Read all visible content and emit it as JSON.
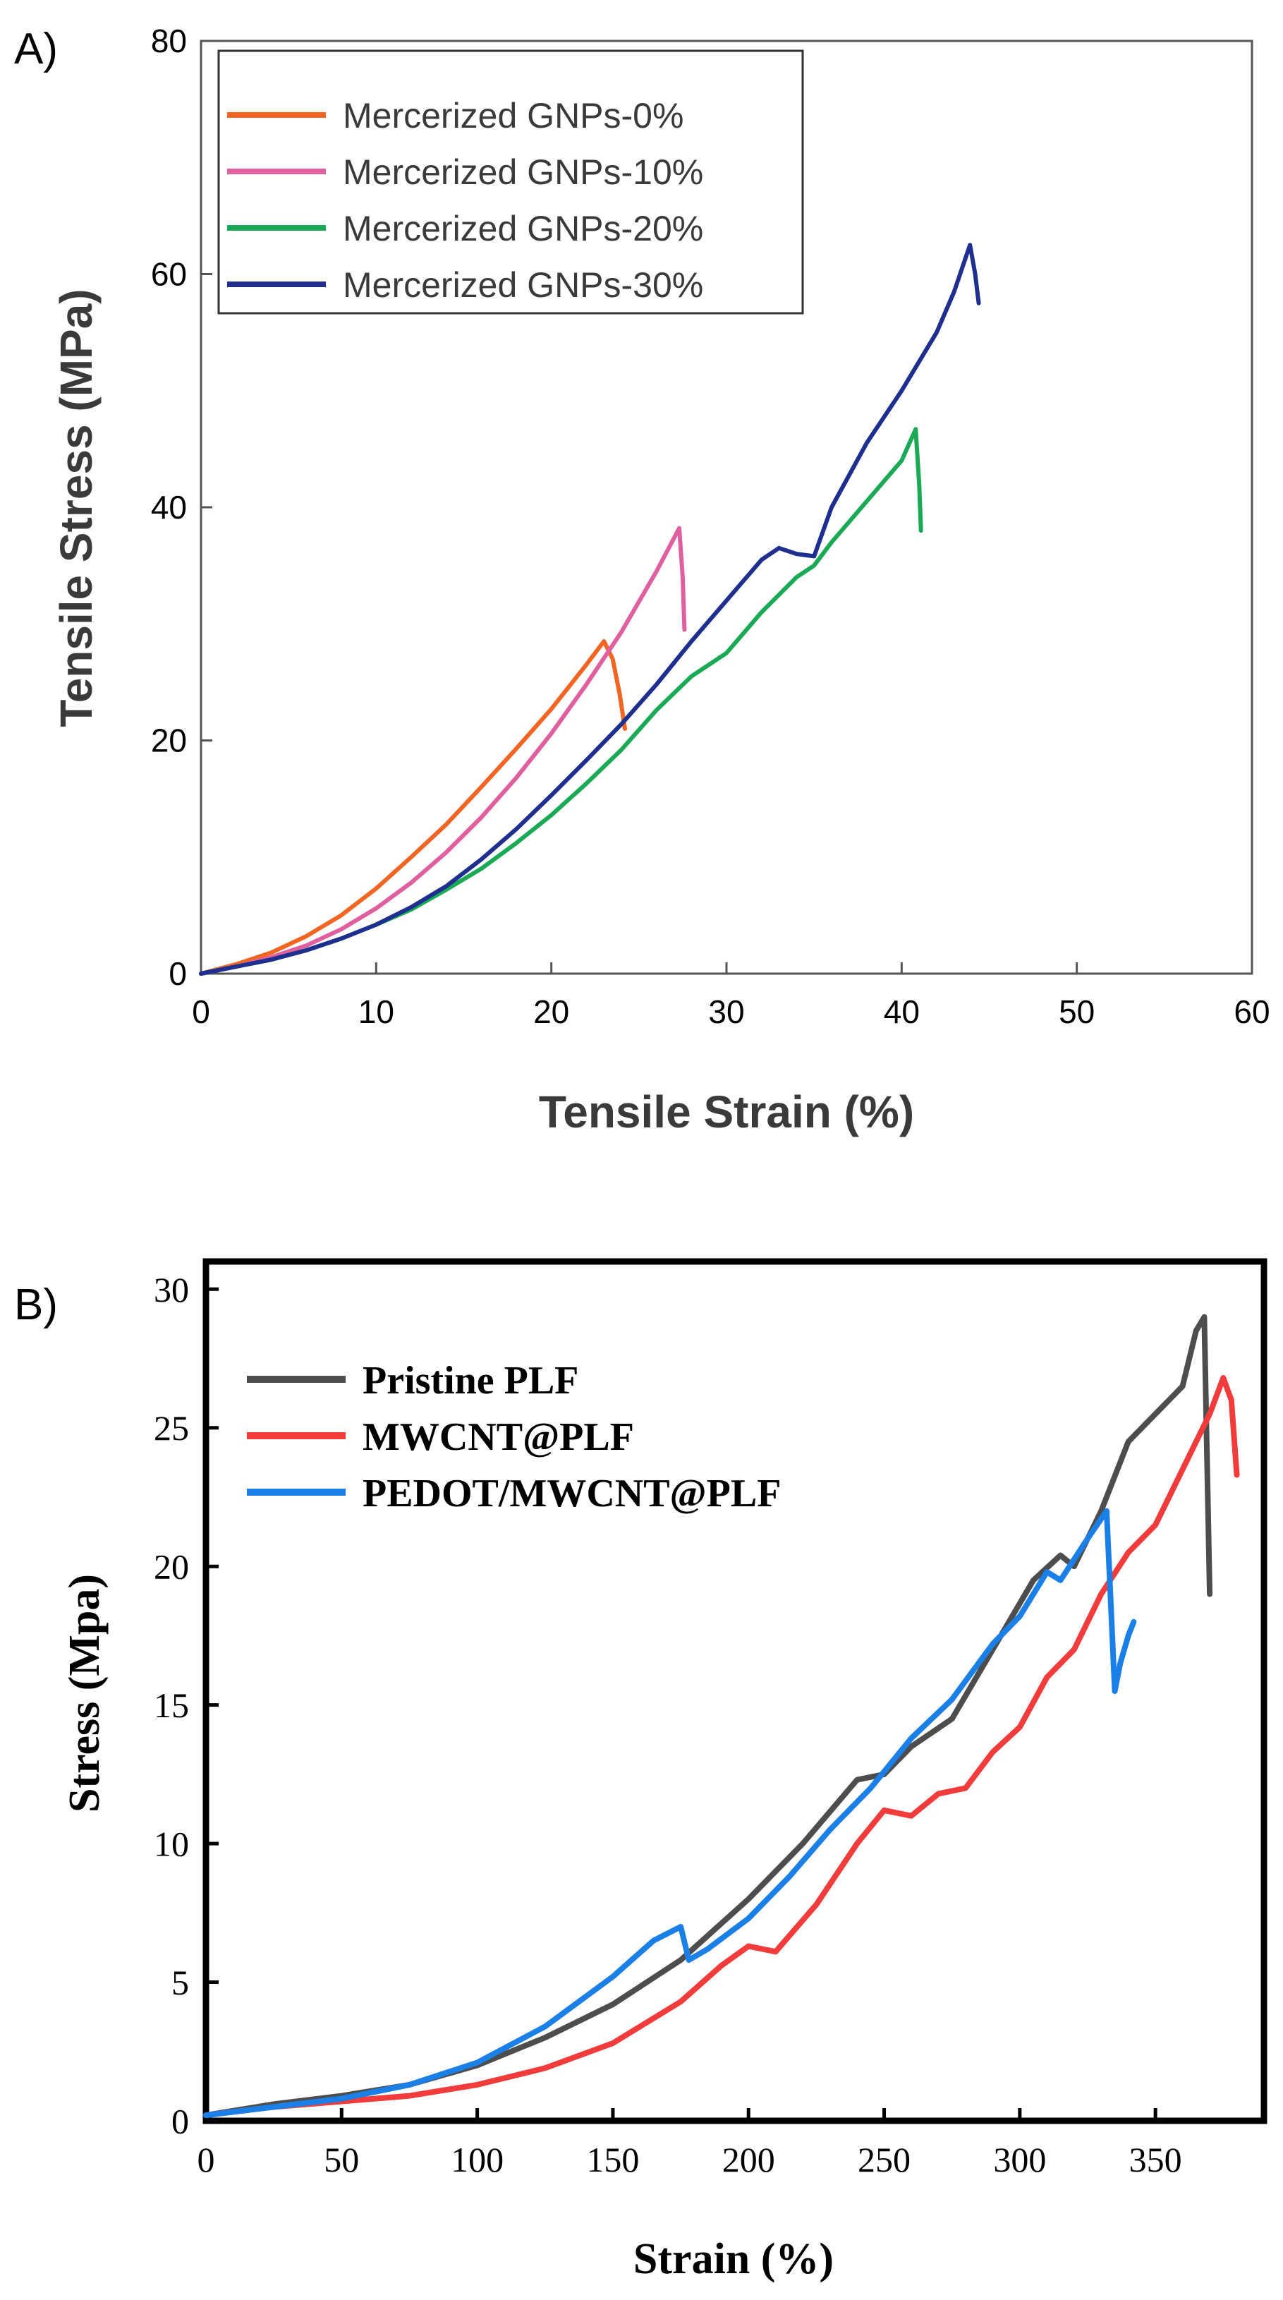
{
  "panels": {
    "a_label": "A)",
    "b_label": "B)"
  },
  "chart_data": [
    {
      "type": "line",
      "panel": "A",
      "title": "",
      "xlabel": "Tensile Strain (%)",
      "ylabel": "Tensile Stress (MPa)",
      "xlim": [
        0,
        60
      ],
      "ylim": [
        0,
        80
      ],
      "xticks": [
        0,
        10,
        20,
        30,
        40,
        50,
        60
      ],
      "yticks": [
        0,
        20,
        40,
        60,
        80
      ],
      "xtick_labels": [
        "0",
        "10",
        "20",
        "30",
        "40",
        "50",
        "60"
      ],
      "ytick_labels": [
        "0",
        "20",
        "40",
        "60",
        "80"
      ],
      "grid": false,
      "legend_position": "top-left",
      "series": [
        {
          "name": "Mercerized GNPs-0%",
          "color": "#f26522",
          "x": [
            0,
            2,
            4,
            6,
            8,
            10,
            12,
            14,
            16,
            18,
            20,
            22,
            23.0,
            23.5,
            23.9,
            24.2
          ],
          "y": [
            0,
            0.8,
            1.8,
            3.2,
            5.0,
            7.3,
            10.0,
            12.8,
            16.0,
            19.3,
            22.7,
            26.5,
            28.5,
            27.0,
            24.0,
            21.0
          ]
        },
        {
          "name": "Mercerized GNPs-10%",
          "color": "#e0609f",
          "x": [
            0,
            2,
            4,
            6,
            8,
            10,
            12,
            14,
            16,
            18,
            20,
            22,
            24,
            26,
            27.3,
            27.5,
            27.6
          ],
          "y": [
            0,
            0.6,
            1.4,
            2.4,
            3.8,
            5.6,
            7.8,
            10.4,
            13.4,
            16.8,
            20.6,
            24.8,
            29.3,
            34.5,
            38.2,
            34.0,
            29.5
          ]
        },
        {
          "name": "Mercerized GNPs-20%",
          "color": "#1aaa55",
          "x": [
            0,
            2,
            4,
            6,
            8,
            10,
            12,
            14,
            16,
            18,
            20,
            22,
            24,
            26,
            28,
            30,
            32,
            34,
            35,
            36,
            38,
            40,
            40.8,
            41.0,
            41.1
          ],
          "y": [
            0,
            0.6,
            1.2,
            2.0,
            3.0,
            4.2,
            5.5,
            7.2,
            9.0,
            11.2,
            13.6,
            16.3,
            19.2,
            22.6,
            25.5,
            27.5,
            31.0,
            34.0,
            35.0,
            37.0,
            40.5,
            44.0,
            46.7,
            42.0,
            38.0
          ]
        },
        {
          "name": "Mercerized GNPs-30%",
          "color": "#1f2f8f",
          "x": [
            0,
            2,
            4,
            6,
            8,
            10,
            12,
            14,
            16,
            18,
            20,
            22,
            24,
            26,
            28,
            30,
            32,
            33,
            34,
            35,
            36,
            38,
            40,
            42,
            43,
            43.9,
            44.2,
            44.4
          ],
          "y": [
            0,
            0.6,
            1.2,
            2.0,
            3.0,
            4.2,
            5.7,
            7.5,
            9.8,
            12.4,
            15.3,
            18.3,
            21.4,
            24.8,
            28.5,
            32.0,
            35.5,
            36.5,
            36.0,
            35.8,
            40.0,
            45.5,
            50.0,
            55.0,
            58.5,
            62.5,
            60.0,
            57.5
          ]
        }
      ]
    },
    {
      "type": "line",
      "panel": "B",
      "title": "",
      "xlabel": "Strain (%)",
      "ylabel": "Stress (Mpa)",
      "xlim": [
        0,
        390
      ],
      "ylim": [
        0,
        31
      ],
      "xticks": [
        0,
        50,
        100,
        150,
        200,
        250,
        300,
        350
      ],
      "yticks": [
        0,
        5,
        10,
        15,
        20,
        25,
        30
      ],
      "xtick_labels": [
        "0",
        "50",
        "100",
        "150",
        "200",
        "250",
        "300",
        "350"
      ],
      "ytick_labels": [
        "0",
        "5",
        "10",
        "15",
        "20",
        "25",
        "30"
      ],
      "grid": false,
      "legend_position": "top-left",
      "series": [
        {
          "name": "Pristine PLF",
          "color": "#4d4d4d",
          "x": [
            0,
            25,
            50,
            75,
            100,
            125,
            150,
            175,
            200,
            220,
            240,
            250,
            260,
            275,
            290,
            305,
            315,
            320,
            330,
            340,
            350,
            355,
            360,
            365,
            368,
            369,
            370
          ],
          "y": [
            0.2,
            0.6,
            0.9,
            1.3,
            2.0,
            3.0,
            4.2,
            5.8,
            8.0,
            10.0,
            12.3,
            12.5,
            13.5,
            14.5,
            17.0,
            19.5,
            20.4,
            20.0,
            22.0,
            24.5,
            25.5,
            26.0,
            26.5,
            28.5,
            29.0,
            24.0,
            19.0
          ]
        },
        {
          "name": "MWCNT@PLF",
          "color": "#f23b3b",
          "x": [
            0,
            25,
            50,
            75,
            100,
            125,
            150,
            175,
            190,
            200,
            210,
            225,
            240,
            250,
            260,
            270,
            280,
            290,
            300,
            310,
            320,
            330,
            340,
            350,
            360,
            370,
            375,
            378,
            380
          ],
          "y": [
            0.2,
            0.5,
            0.7,
            0.9,
            1.3,
            1.9,
            2.8,
            4.3,
            5.6,
            6.3,
            6.1,
            7.8,
            10.0,
            11.2,
            11.0,
            11.8,
            12.0,
            13.3,
            14.2,
            16.0,
            17.0,
            19.0,
            20.5,
            21.5,
            23.5,
            25.5,
            26.8,
            26.0,
            23.3
          ]
        },
        {
          "name": "PEDOT/MWCNT@PLF",
          "color": "#1a7fe6",
          "x": [
            0,
            25,
            50,
            75,
            100,
            125,
            150,
            165,
            175,
            178,
            185,
            200,
            215,
            230,
            245,
            260,
            275,
            290,
            300,
            310,
            315,
            325,
            332,
            335,
            337,
            340,
            342
          ],
          "y": [
            0.2,
            0.5,
            0.8,
            1.3,
            2.1,
            3.4,
            5.2,
            6.5,
            7.0,
            5.8,
            6.2,
            7.3,
            8.8,
            10.5,
            12.0,
            13.8,
            15.2,
            17.2,
            18.2,
            19.8,
            19.5,
            21.0,
            22.0,
            15.5,
            16.5,
            17.5,
            18.0
          ]
        }
      ]
    }
  ]
}
